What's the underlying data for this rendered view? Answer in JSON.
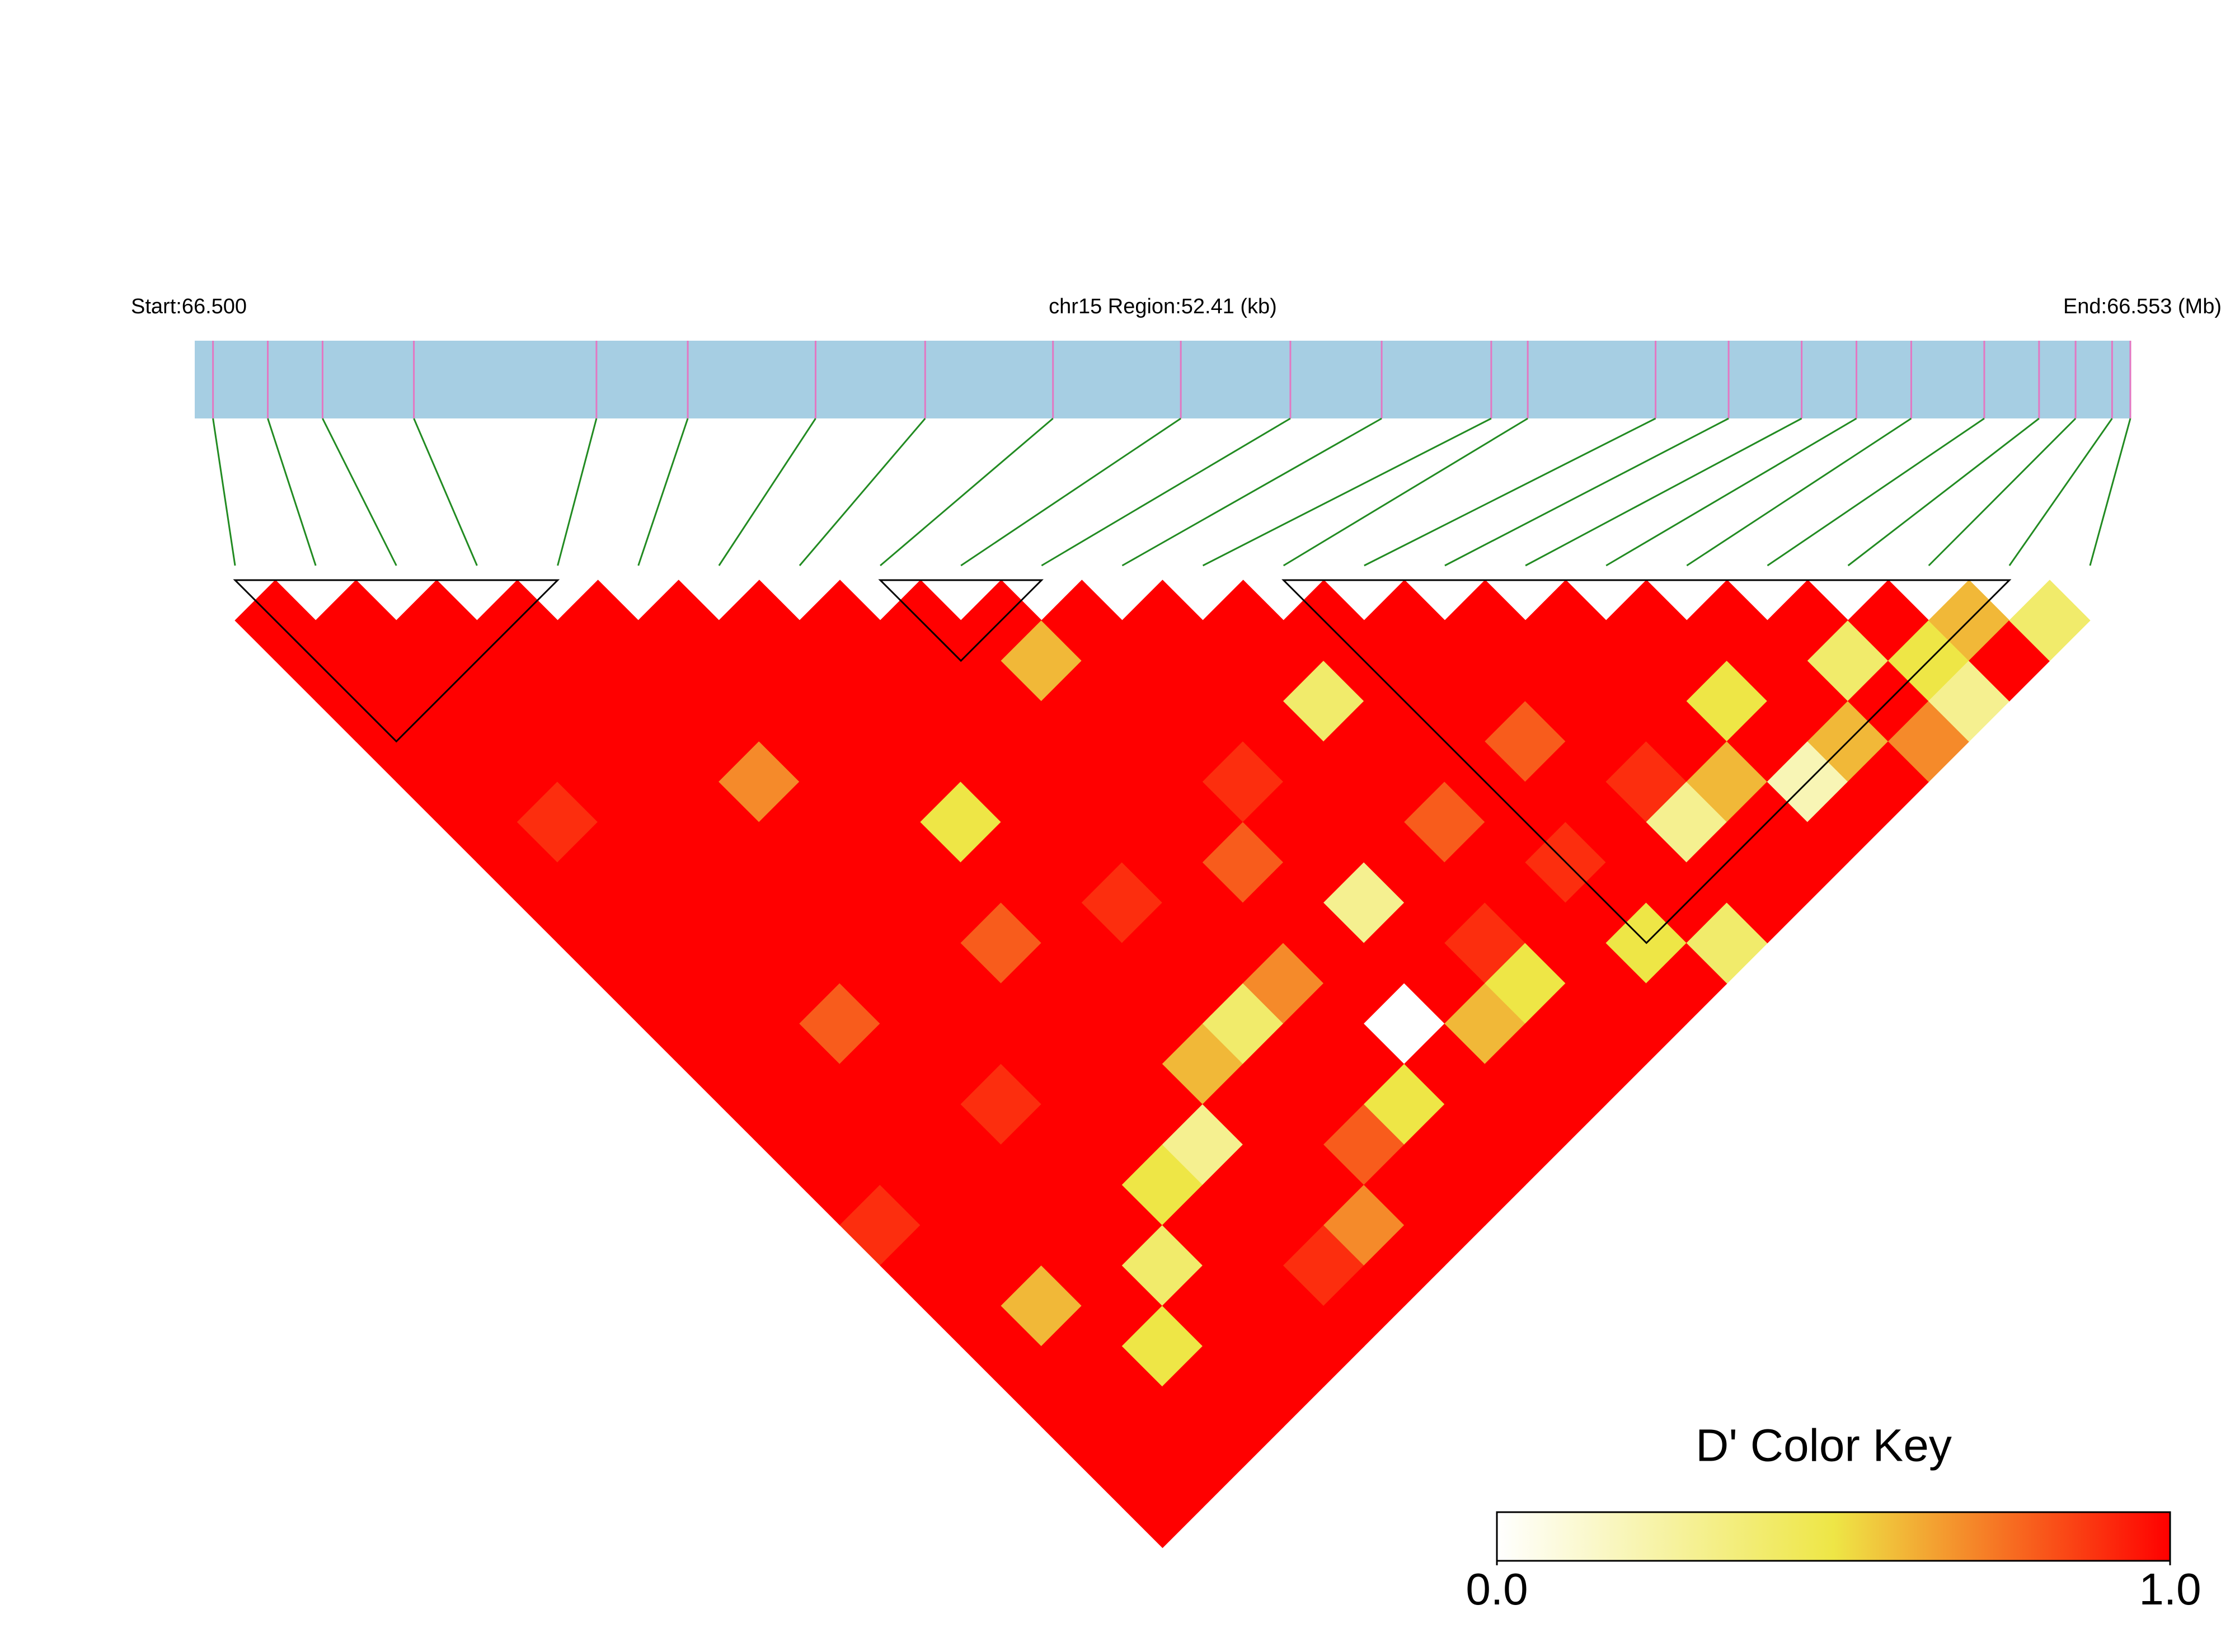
{
  "chart_data": {
    "type": "ld_heatmap",
    "start_label": "Start:66.500",
    "region_label": "chr15 Region:52.41 (kb)",
    "end_label": "End:66.553 (Mb)",
    "xlim": [
      66.5,
      66.553
    ],
    "snp_positions": [
      66.5005,
      66.502,
      66.5035,
      66.506,
      66.511,
      66.5135,
      66.517,
      66.52,
      66.5235,
      66.527,
      66.53,
      66.5325,
      66.5355,
      66.5365,
      66.54,
      66.542,
      66.544,
      66.5455,
      66.547,
      66.549,
      66.5505,
      66.5515,
      66.5525,
      66.553
    ],
    "ld_matrix": [
      [
        1,
        1,
        1,
        1,
        1,
        1,
        1,
        1,
        1,
        1,
        1,
        1,
        1,
        1,
        1,
        0.9,
        1,
        1,
        1,
        1,
        1,
        1,
        1
      ],
      [
        1,
        1,
        1,
        1,
        1,
        0.9,
        1,
        1,
        1,
        1,
        1,
        1,
        1,
        1,
        1,
        1,
        1,
        0.6,
        1,
        1,
        1,
        1
      ],
      [
        1,
        1,
        1,
        1,
        1,
        1,
        1,
        1,
        1,
        1,
        0.8,
        1,
        1,
        1,
        1,
        1,
        1,
        1,
        0.5,
        1,
        1
      ],
      [
        1,
        1,
        1,
        1,
        1,
        1,
        1,
        1,
        1,
        1,
        1,
        1,
        0.9,
        1,
        1,
        1,
        0.4,
        1,
        1,
        1
      ],
      [
        1,
        1,
        1,
        1,
        0.7,
        1,
        1,
        1,
        1,
        1,
        1,
        1,
        1,
        1,
        0.5,
        1,
        1,
        1,
        1
      ],
      [
        1,
        1,
        1,
        1,
        1,
        1,
        1,
        1,
        0.8,
        1,
        1,
        1,
        1,
        0.3,
        1,
        1,
        0.9,
        1
      ],
      [
        1,
        1,
        1,
        1,
        1,
        0.5,
        1,
        1,
        1,
        1,
        1,
        0.6,
        1,
        1,
        1,
        0.7,
        1
      ],
      [
        1,
        1,
        1,
        1,
        1,
        1,
        1,
        0.9,
        1,
        1,
        0.4,
        1,
        1,
        0.8,
        1,
        1
      ],
      [
        1,
        1,
        1,
        1,
        1,
        1,
        1,
        1,
        1,
        0.7,
        1,
        1,
        0.5,
        1,
        1
      ],
      [
        1,
        0.6,
        1,
        1,
        1,
        1,
        0.8,
        1,
        1,
        1,
        0,
        1,
        1,
        1
      ],
      [
        1,
        1,
        1,
        1,
        0.9,
        1,
        1,
        0.3,
        1,
        1,
        0.6,
        1,
        1
      ],
      [
        1,
        1,
        1,
        1,
        1,
        1,
        1,
        1,
        0.9,
        0.5,
        1,
        1
      ],
      [
        1,
        1,
        0.4,
        1,
        1,
        0.8,
        1,
        1,
        1,
        1,
        1
      ],
      [
        1,
        1,
        1,
        1,
        1,
        1,
        0.9,
        1,
        0.5,
        1
      ],
      [
        1,
        1,
        1,
        0.8,
        1,
        1,
        1,
        1,
        0.4
      ],
      [
        1,
        1,
        1,
        1,
        0.9,
        0.3,
        1,
        1
      ],
      [
        1,
        1,
        1,
        1,
        0.6,
        1,
        1
      ],
      [
        1,
        1,
        0.5,
        1,
        0.2,
        1
      ],
      [
        1,
        1,
        1,
        0.6,
        1
      ],
      [
        1,
        0.4,
        1,
        0.7
      ],
      [
        1,
        0.5,
        0.3
      ],
      [
        0.6,
        1
      ],
      [
        0.4
      ]
    ],
    "blocks": [
      [
        0,
        4
      ],
      [
        8,
        10
      ],
      [
        13,
        22
      ]
    ],
    "colors": [
      "#ffffff",
      "#eee646",
      "#ff0000"
    ],
    "track_color": "#a6cee3",
    "tick_color": "#e377c2",
    "connector_color": "#228b22",
    "key_title": "D' Color Key",
    "key_ticks": [
      {
        "value": 0,
        "label": "0.0"
      },
      {
        "value": 1,
        "label": "1.0"
      }
    ]
  }
}
